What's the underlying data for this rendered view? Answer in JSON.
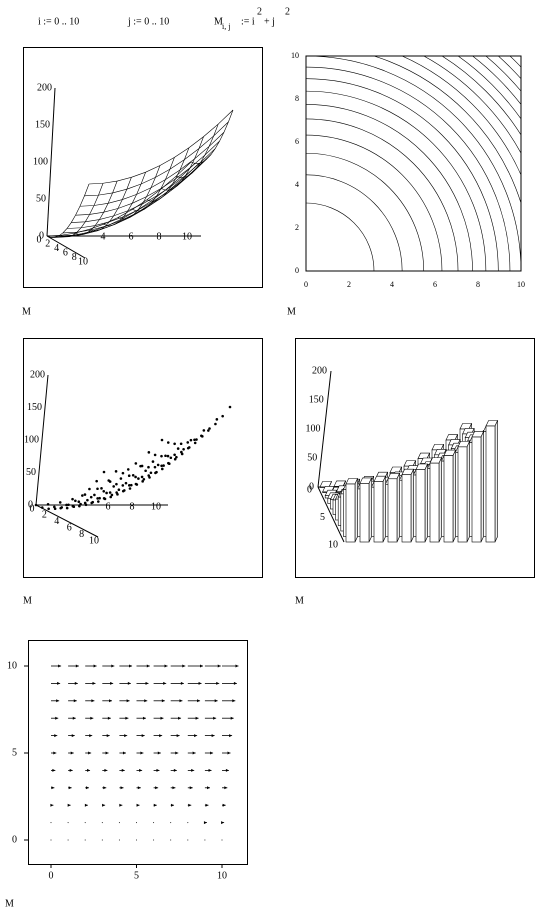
{
  "formulas": {
    "i": "i := 0 .. 10",
    "j": "j := 0 .. 10",
    "m_name": "M",
    "m_sub": "i, j",
    "m_rhs_1": ":= i",
    "m_exp_1": "2",
    "m_rhs_2": "+ j",
    "m_exp_2": "2"
  },
  "plots": [
    {
      "kind": "surface",
      "label": "M",
      "z_ticks": [
        0,
        50,
        100,
        150,
        200
      ],
      "i_ticks": [
        4,
        6,
        8,
        10
      ],
      "j_ticks": [
        0,
        2,
        4,
        6,
        8,
        10
      ]
    },
    {
      "kind": "contour",
      "label": "M",
      "x_ticks": [
        0,
        2,
        4,
        6,
        8,
        10
      ],
      "y_ticks": [
        0,
        2,
        4,
        6,
        8,
        10
      ]
    },
    {
      "kind": "scatter3d",
      "label": "M",
      "z_ticks": [
        0,
        50,
        100,
        150,
        200
      ],
      "i_ticks": [
        6,
        8,
        10
      ],
      "j_ticks": [
        0,
        2,
        4,
        6,
        8,
        10
      ]
    },
    {
      "kind": "bar3d",
      "label": "M",
      "z_ticks": [
        0,
        50,
        100,
        150,
        200
      ],
      "j_ticks": [
        0,
        5,
        10
      ]
    },
    {
      "kind": "vector",
      "label": "M",
      "x_ticks": [
        0,
        5,
        10
      ],
      "y_ticks": [
        0,
        5,
        10
      ]
    }
  ]
}
